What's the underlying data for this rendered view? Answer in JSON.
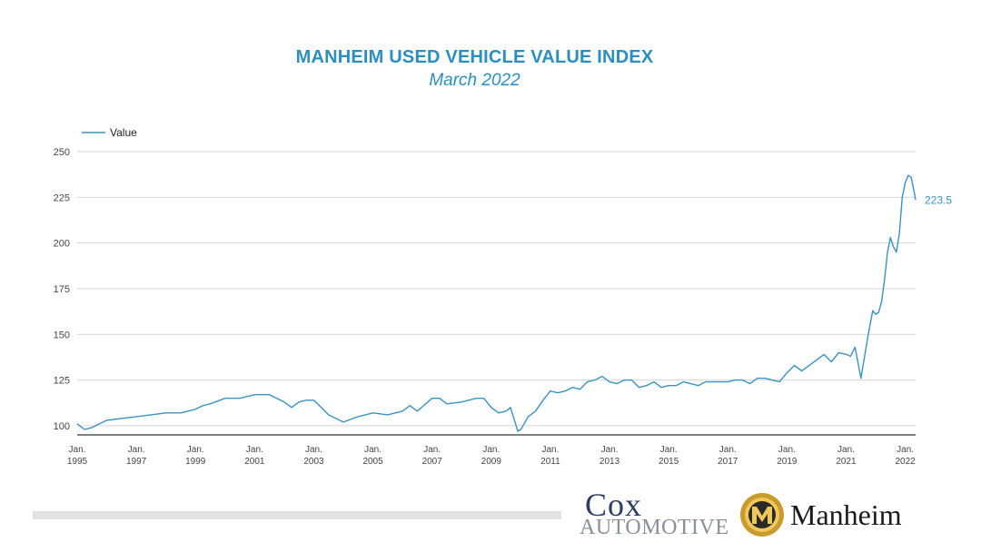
{
  "title": "MANHEIM USED VEHICLE VALUE INDEX",
  "subtitle": "March 2022",
  "logos": {
    "cox_top": "Cox",
    "cox_bottom": "AUTOMOTIVE",
    "manheim": "Manheim"
  },
  "chart_data": {
    "type": "line",
    "title": "MANHEIM USED VEHICLE VALUE INDEX",
    "subtitle": "March 2022",
    "legend_position": "top-left",
    "grid": true,
    "line_color": "#3a93bf",
    "series": [
      {
        "name": "Value",
        "points": [
          [
            1995.0,
            101
          ],
          [
            1995.25,
            98
          ],
          [
            1995.5,
            99
          ],
          [
            1995.75,
            101
          ],
          [
            1996.0,
            103
          ],
          [
            1996.5,
            104
          ],
          [
            1997.0,
            105
          ],
          [
            1997.5,
            106
          ],
          [
            1998.0,
            107
          ],
          [
            1998.5,
            107
          ],
          [
            1999.0,
            109
          ],
          [
            1999.25,
            111
          ],
          [
            1999.5,
            112
          ],
          [
            2000.0,
            115
          ],
          [
            2000.5,
            115
          ],
          [
            2001.0,
            117
          ],
          [
            2001.5,
            117
          ],
          [
            2002.0,
            113
          ],
          [
            2002.25,
            110
          ],
          [
            2002.5,
            113
          ],
          [
            2002.75,
            114
          ],
          [
            2003.0,
            114
          ],
          [
            2003.25,
            110
          ],
          [
            2003.5,
            106
          ],
          [
            2003.75,
            104
          ],
          [
            2004.0,
            102
          ],
          [
            2004.5,
            105
          ],
          [
            2005.0,
            107
          ],
          [
            2005.5,
            106
          ],
          [
            2006.0,
            108
          ],
          [
            2006.25,
            111
          ],
          [
            2006.5,
            108
          ],
          [
            2007.0,
            115
          ],
          [
            2007.25,
            115
          ],
          [
            2007.5,
            112
          ],
          [
            2008.0,
            113
          ],
          [
            2008.5,
            115
          ],
          [
            2008.75,
            115
          ],
          [
            2009.0,
            110
          ],
          [
            2009.25,
            107
          ],
          [
            2009.5,
            108
          ],
          [
            2009.65,
            110
          ],
          [
            2009.9,
            97
          ],
          [
            2010.0,
            98
          ],
          [
            2010.25,
            105
          ],
          [
            2010.5,
            108
          ],
          [
            2010.75,
            114
          ],
          [
            2011.0,
            119
          ],
          [
            2011.25,
            118
          ],
          [
            2011.5,
            119
          ],
          [
            2011.75,
            121
          ],
          [
            2012.0,
            120
          ],
          [
            2012.25,
            124
          ],
          [
            2012.5,
            125
          ],
          [
            2012.75,
            127
          ],
          [
            2013.0,
            124
          ],
          [
            2013.25,
            123
          ],
          [
            2013.5,
            125
          ],
          [
            2013.75,
            125
          ],
          [
            2014.0,
            121
          ],
          [
            2014.25,
            122
          ],
          [
            2014.5,
            124
          ],
          [
            2014.75,
            121
          ],
          [
            2015.0,
            122
          ],
          [
            2015.25,
            122
          ],
          [
            2015.5,
            124
          ],
          [
            2015.75,
            123
          ],
          [
            2016.0,
            122
          ],
          [
            2016.25,
            124
          ],
          [
            2016.5,
            124
          ],
          [
            2017.0,
            124
          ],
          [
            2017.25,
            125
          ],
          [
            2017.5,
            125
          ],
          [
            2017.75,
            123
          ],
          [
            2018.0,
            126
          ],
          [
            2018.25,
            126
          ],
          [
            2018.5,
            125
          ],
          [
            2018.75,
            124
          ],
          [
            2019.0,
            129
          ],
          [
            2019.25,
            133
          ],
          [
            2019.5,
            130
          ],
          [
            2019.75,
            133
          ],
          [
            2020.0,
            136
          ],
          [
            2020.25,
            139
          ],
          [
            2020.5,
            135
          ],
          [
            2020.75,
            140
          ],
          [
            2021.0,
            139
          ],
          [
            2021.15,
            138
          ],
          [
            2021.3,
            143
          ],
          [
            2021.5,
            126
          ],
          [
            2021.75,
            150
          ],
          [
            2021.9,
            163
          ],
          [
            2022.0,
            161
          ],
          [
            2022.1,
            162
          ],
          [
            2022.2,
            168
          ],
          [
            2022.3,
            180
          ],
          [
            2022.4,
            195
          ],
          [
            2022.5,
            203
          ],
          [
            2022.6,
            198
          ],
          [
            2022.7,
            195
          ],
          [
            2022.8,
            205
          ],
          [
            2022.9,
            225
          ],
          [
            2023.0,
            233
          ],
          [
            2023.1,
            237
          ],
          [
            2023.2,
            236
          ],
          [
            2023.3,
            228
          ],
          [
            2023.35,
            223.5
          ]
        ]
      }
    ],
    "y_ticks": [
      100,
      125,
      150,
      175,
      200,
      225,
      250
    ],
    "ylim": [
      95,
      250
    ],
    "x_ticks": [
      {
        "pos": 1995.0,
        "line1": "Jan.",
        "line2": "1995"
      },
      {
        "pos": 1997.0,
        "line1": "Jan.",
        "line2": "1997"
      },
      {
        "pos": 1999.0,
        "line1": "Jan.",
        "line2": "1999"
      },
      {
        "pos": 2001.0,
        "line1": "Jan.",
        "line2": "2001"
      },
      {
        "pos": 2003.0,
        "line1": "Jan.",
        "line2": "2003"
      },
      {
        "pos": 2005.0,
        "line1": "Jan.",
        "line2": "2005"
      },
      {
        "pos": 2007.0,
        "line1": "Jan.",
        "line2": "2007"
      },
      {
        "pos": 2009.0,
        "line1": "Jan.",
        "line2": "2009"
      },
      {
        "pos": 2011.0,
        "line1": "Jan.",
        "line2": "2011"
      },
      {
        "pos": 2013.0,
        "line1": "Jan.",
        "line2": "2013"
      },
      {
        "pos": 2015.0,
        "line1": "Jan.",
        "line2": "2015"
      },
      {
        "pos": 2017.0,
        "line1": "Jan.",
        "line2": "2017"
      },
      {
        "pos": 2019.0,
        "line1": "Jan.",
        "line2": "2019"
      },
      {
        "pos": 2021.0,
        "line1": "Jan.",
        "line2": "2021"
      },
      {
        "pos": 2023.0,
        "line1": "Jan.",
        "line2": "2022"
      }
    ],
    "xlim": [
      1995.0,
      2023.35
    ],
    "end_label": {
      "text": "223.5",
      "x": 2023.35,
      "y": 223.5
    }
  }
}
